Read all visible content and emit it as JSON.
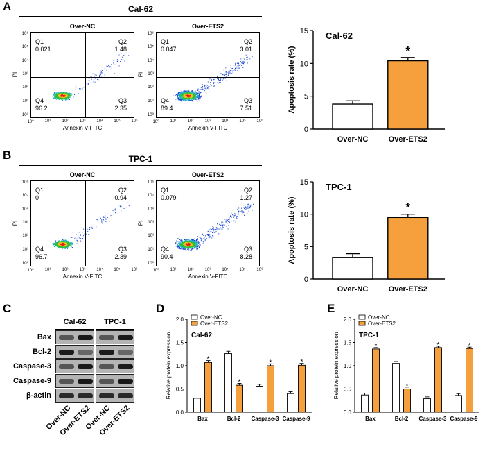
{
  "panels": {
    "A": {
      "letter": "A",
      "cell_line": "Cal-62",
      "plots": [
        {
          "title": "Over-NC",
          "q1_label": "Q1",
          "q1": "0.021",
          "q2_label": "Q2",
          "q2": "1.48",
          "q3_label": "Q3",
          "q3": "2.35",
          "q4_label": "Q4",
          "q4": "96.2"
        },
        {
          "title": "Over-ETS2",
          "q1_label": "Q1",
          "q1": "0.047",
          "q2_label": "Q2",
          "q2": "3.01",
          "q3_label": "Q3",
          "q3": "7.51",
          "q4_label": "Q4",
          "q4": "89.4"
        }
      ]
    },
    "B": {
      "letter": "B",
      "cell_line": "TPC-1",
      "plots": [
        {
          "title": "Over-NC",
          "q1_label": "Q1",
          "q1": "0",
          "q2_label": "Q2",
          "q2": "0.94",
          "q3_label": "Q3",
          "q3": "2.39",
          "q4_label": "Q4",
          "q4": "96.7"
        },
        {
          "title": "Over-ETS2",
          "q1_label": "Q1",
          "q1": "0.079",
          "q2_label": "Q2",
          "q2": "1.27",
          "q3_label": "Q3",
          "q3": "8.28",
          "q4_label": "Q4",
          "q4": "90.4"
        }
      ]
    },
    "C": {
      "letter": "C",
      "columns": [
        "Cal-62",
        "TPC-1"
      ],
      "rows": [
        "Bax",
        "Bcl-2",
        "Caspase-3",
        "Caspase-9",
        "β-actin"
      ],
      "lanes": [
        "Over-NC",
        "Over-ETS2",
        "Over-NC",
        "Over-ETS2"
      ]
    },
    "D": {
      "letter": "D"
    },
    "E": {
      "letter": "E"
    }
  },
  "flow_axes": {
    "ylabel": "PI",
    "xlabel": "Annexin V-FITC",
    "ticks": [
      "10⁰",
      "10¹",
      "10²",
      "10³",
      "10⁴",
      "10⁵",
      "10⁶"
    ]
  },
  "colors": {
    "nc": "#ffffff",
    "ets2": "#f5a03c",
    "line": "#000000"
  },
  "chart_data": [
    {
      "id": "apoptosis-cal62",
      "type": "bar",
      "title": "Cal-62",
      "categories": [
        "Over-NC",
        "Over-ETS2"
      ],
      "values": [
        3.8,
        10.4
      ],
      "errors": [
        0.5,
        0.5
      ],
      "ylabel": "Apoptosis rate (%)",
      "ylim": [
        0,
        15
      ],
      "yticks": [
        0,
        5,
        10,
        15
      ],
      "yticklabels": [
        "0",
        "5",
        "10",
        "15"
      ],
      "significance": [
        "",
        "*"
      ]
    },
    {
      "id": "apoptosis-tpc1",
      "type": "bar",
      "title": "TPC-1",
      "categories": [
        "Over-NC",
        "Over-ETS2"
      ],
      "values": [
        3.3,
        9.5
      ],
      "errors": [
        0.6,
        0.5
      ],
      "ylabel": "Apoptosis rate (%)",
      "ylim": [
        0,
        15
      ],
      "yticks": [
        0,
        5,
        10,
        15
      ],
      "yticklabels": [
        "0",
        "5",
        "10",
        "15"
      ],
      "significance": [
        "",
        "*"
      ]
    },
    {
      "id": "protein-cal62",
      "type": "bar",
      "title": "Cal-62",
      "categories": [
        "Bax",
        "Bcl-2",
        "Caspase-3",
        "Caspase-9"
      ],
      "series": [
        {
          "name": "Over-NC",
          "values": [
            0.3,
            1.26,
            0.56,
            0.4
          ],
          "errors": [
            0.05,
            0.05,
            0.04,
            0.04
          ],
          "significance": [
            "",
            "",
            "",
            ""
          ]
        },
        {
          "name": "Over-ETS2",
          "values": [
            1.07,
            0.58,
            1.0,
            1.01
          ],
          "errors": [
            0.04,
            0.04,
            0.04,
            0.04
          ],
          "significance": [
            "*",
            "*",
            "*",
            "*"
          ]
        }
      ],
      "ylabel": "Relative protein expression",
      "ylim": [
        0,
        2.0
      ],
      "yticks": [
        0,
        0.5,
        1.0,
        1.5,
        2.0
      ],
      "yticklabels": [
        "0.0",
        "0.5",
        "1.0",
        "1.5",
        "2.0"
      ],
      "legend": "top-left"
    },
    {
      "id": "protein-tpc1",
      "type": "bar",
      "title": "TPC-1",
      "categories": [
        "Bax",
        "Bcl-2",
        "Caspase-3",
        "Caspase-9"
      ],
      "series": [
        {
          "name": "Over-NC",
          "values": [
            0.37,
            1.05,
            0.29,
            0.36
          ],
          "errors": [
            0.04,
            0.04,
            0.04,
            0.04
          ],
          "significance": [
            "",
            "",
            "",
            ""
          ]
        },
        {
          "name": "Over-ETS2",
          "values": [
            1.36,
            0.5,
            1.39,
            1.37
          ],
          "errors": [
            0.03,
            0.04,
            0.03,
            0.03
          ],
          "significance": [
            "*",
            "*",
            "*",
            "*"
          ]
        }
      ],
      "ylabel": "Relative protein expression",
      "ylim": [
        0,
        2.0
      ],
      "yticks": [
        0,
        0.5,
        1.0,
        1.5,
        2.0
      ],
      "yticklabels": [
        "0.0",
        "0.5",
        "1.0",
        "1.5",
        "2.0"
      ],
      "legend": "top-left"
    }
  ]
}
